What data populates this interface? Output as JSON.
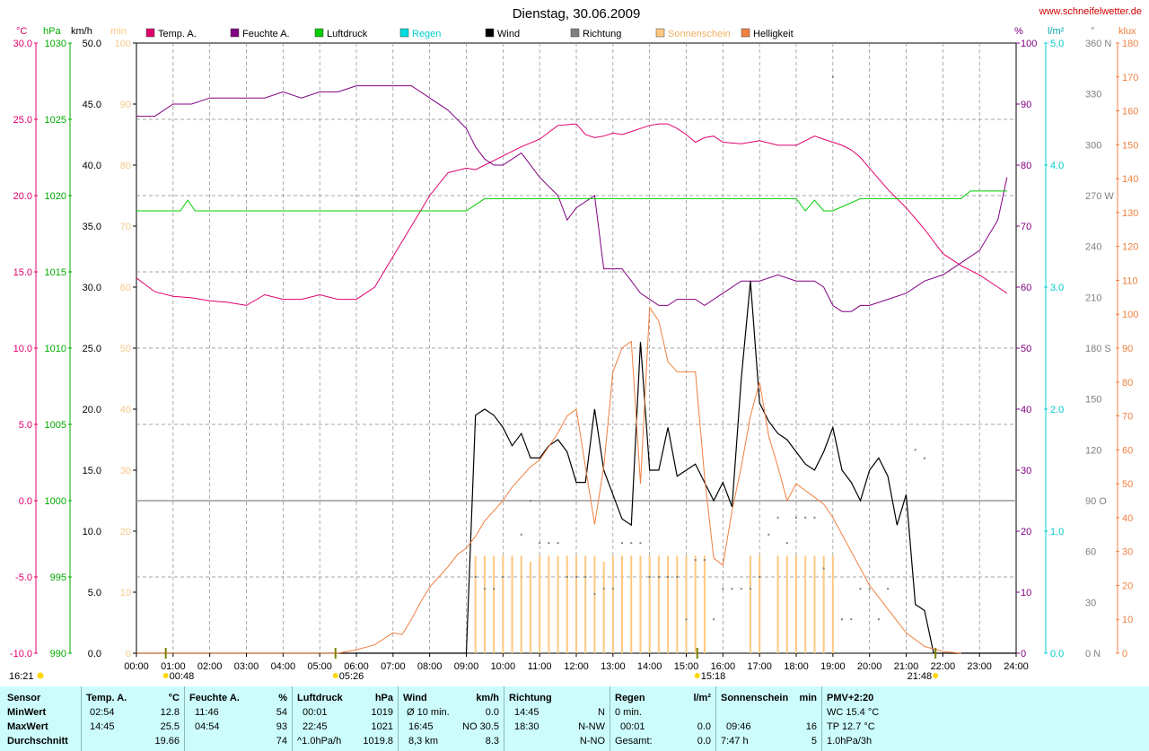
{
  "title": "Dienstag, 30.06.2009",
  "site": "www.schneifelwetter.de",
  "colors": {
    "temp": "#e0006c",
    "humidity": "#800080",
    "pressure": "#00cc00",
    "rain": "#00dddd",
    "wind": "#000000",
    "direction": "#808080",
    "sunshine": "#ffc880",
    "brightness": "#f08040"
  },
  "legend": [
    {
      "label": "Temp. A.",
      "color": "#e0006c"
    },
    {
      "label": "Feuchte A.",
      "color": "#800080"
    },
    {
      "label": "Luftdruck",
      "color": "#00cc00"
    },
    {
      "label": "Regen",
      "color": "#00dddd"
    },
    {
      "label": "Wind",
      "color": "#000000"
    },
    {
      "label": "Richtung",
      "color": "#808080"
    },
    {
      "label": "Sonnenschein",
      "color": "#ffc880"
    },
    {
      "label": "Helligkeit",
      "color": "#f08040"
    }
  ],
  "chart_data": {
    "type": "line",
    "x_range": [
      0,
      24
    ],
    "grid": true,
    "axes": {
      "temp": {
        "unit": "°C",
        "range": [
          -10,
          30
        ],
        "ticks": [
          "30.0",
          "25.0",
          "20.0",
          "15.0",
          "10.0",
          "5.0",
          "0.0",
          "-5.0",
          "-10.0"
        ]
      },
      "pressure": {
        "unit": "hPa",
        "range": [
          990,
          1030
        ],
        "ticks": [
          "1030",
          "1025",
          "1020",
          "1015",
          "1010",
          "1005",
          "1000",
          "995",
          "990"
        ]
      },
      "wind": {
        "unit": "km/h",
        "range": [
          0,
          50
        ],
        "ticks": [
          "50.0",
          "45.0",
          "40.0",
          "35.0",
          "30.0",
          "25.0",
          "20.0",
          "15.0",
          "10.0",
          "5.0",
          "0.0"
        ]
      },
      "minutes": {
        "unit": "min",
        "range": [
          0,
          100
        ],
        "ticks": [
          "100",
          "90",
          "80",
          "70",
          "60",
          "50",
          "40",
          "30",
          "20",
          "10",
          "0"
        ]
      },
      "humidity": {
        "unit": "%",
        "range": [
          0,
          100
        ],
        "ticks": [
          "100",
          "90",
          "80",
          "70",
          "60",
          "50",
          "40",
          "30",
          "20",
          "10",
          "0"
        ]
      },
      "rain": {
        "unit": "l/m²",
        "range": [
          0,
          5
        ],
        "ticks": [
          "5.0",
          "4.0",
          "3.0",
          "2.0",
          "1.0",
          "0.0"
        ]
      },
      "direction": {
        "unit": "°",
        "range": [
          0,
          360
        ],
        "ticks": [
          "360 N",
          "330",
          "300",
          "270 W",
          "240",
          "210",
          "180 S",
          "150",
          "120",
          "90 O",
          "60",
          "30",
          "0 N"
        ]
      },
      "brightness": {
        "unit": "klux",
        "range": [
          0,
          180
        ],
        "ticks": [
          "180",
          "170",
          "160",
          "150",
          "140",
          "130",
          "120",
          "110",
          "100",
          "90",
          "80",
          "70",
          "60",
          "50",
          "40",
          "30",
          "20",
          "10",
          "0"
        ]
      }
    },
    "x_ticks": [
      "00:00",
      "01:00",
      "02:00",
      "03:00",
      "04:00",
      "05:00",
      "06:00",
      "07:00",
      "08:00",
      "09:00",
      "10:00",
      "11:00",
      "12:00",
      "13:00",
      "14:00",
      "15:00",
      "16:00",
      "17:00",
      "18:00",
      "19:00",
      "20:00",
      "21:00",
      "22:00",
      "23:00",
      "24:00"
    ],
    "reference_line_temp": 0,
    "series": [
      {
        "name": "Temp. A.",
        "axis": "temp",
        "color": "#e0006c",
        "x": [
          0,
          0.5,
          1,
          1.5,
          2,
          2.5,
          3,
          3.5,
          4,
          4.5,
          5,
          5.5,
          6,
          6.5,
          7,
          7.5,
          8,
          8.5,
          9,
          9.25,
          9.5,
          9.75,
          10,
          10.5,
          11,
          11.5,
          12,
          12.25,
          12.5,
          12.75,
          13,
          13.25,
          13.5,
          13.75,
          14,
          14.25,
          14.5,
          14.75,
          15,
          15.25,
          15.5,
          15.75,
          16,
          16.5,
          17,
          17.5,
          18,
          18.25,
          18.5,
          18.75,
          19,
          19.25,
          19.5,
          19.75,
          20,
          20.25,
          20.5,
          20.75,
          21,
          21.25,
          21.5,
          21.75,
          22,
          22.5,
          23,
          23.5,
          23.75
        ],
        "y": [
          14.6,
          13.7,
          13.4,
          13.3,
          13.1,
          13.0,
          12.8,
          13.5,
          13.2,
          13.2,
          13.5,
          13.2,
          13.2,
          14.0,
          16.0,
          18.0,
          20.0,
          21.5,
          21.8,
          21.7,
          22.0,
          22.3,
          22.6,
          23.2,
          23.7,
          24.6,
          24.7,
          24.0,
          23.8,
          23.9,
          24.1,
          24.0,
          24.2,
          24.4,
          24.6,
          24.7,
          24.7,
          24.4,
          24.0,
          23.5,
          23.8,
          23.9,
          23.5,
          23.4,
          23.6,
          23.3,
          23.3,
          23.6,
          23.9,
          23.7,
          23.5,
          23.3,
          23.0,
          22.5,
          21.8,
          21.1,
          20.4,
          19.8,
          19.2,
          18.5,
          17.8,
          17.0,
          16.2,
          15.4,
          14.8,
          14.0,
          13.6
        ]
      },
      {
        "name": "Feuchte A.",
        "axis": "humidity",
        "color": "#800080",
        "x": [
          0,
          0.5,
          1,
          1.5,
          2,
          2.5,
          3,
          3.5,
          4,
          4.5,
          5,
          5.5,
          6,
          6.5,
          7,
          7.5,
          8,
          8.5,
          9,
          9.25,
          9.5,
          9.75,
          10,
          10.5,
          11,
          11.5,
          11.75,
          12,
          12.5,
          12.75,
          13,
          13.25,
          13.5,
          13.75,
          14,
          14.25,
          14.5,
          14.75,
          15,
          15.25,
          15.5,
          16,
          16.5,
          17,
          17.5,
          18,
          18.5,
          18.75,
          19,
          19.25,
          19.5,
          19.75,
          20,
          20.5,
          21,
          21.5,
          22,
          22.5,
          23,
          23.5,
          23.75
        ],
        "y": [
          88,
          88,
          90,
          90,
          91,
          91,
          91,
          91,
          92,
          91,
          92,
          92,
          93,
          93,
          93,
          93,
          91,
          89,
          86,
          83,
          81,
          80,
          80,
          82,
          78,
          75,
          71,
          73,
          75,
          63,
          63,
          63,
          61,
          59,
          58,
          57,
          57,
          58,
          58,
          58,
          57,
          59,
          61,
          61,
          62,
          61,
          61,
          60,
          57,
          56,
          56,
          57,
          57,
          58,
          59,
          61,
          62,
          64,
          66,
          71,
          78
        ]
      },
      {
        "name": "Luftdruck",
        "axis": "pressure",
        "color": "#00cc00",
        "x": [
          0,
          1.2,
          1.4,
          1.6,
          9.0,
          9.25,
          9.5,
          18.0,
          18.25,
          18.5,
          18.75,
          19.0,
          19.75,
          20.0,
          22.5,
          22.75,
          23.75
        ],
        "y": [
          1019,
          1019,
          1019.7,
          1019,
          1019,
          1019.4,
          1019.8,
          1019.8,
          1019,
          1019.7,
          1019,
          1019,
          1019.8,
          1019.8,
          1019.8,
          1020.3,
          1020.3
        ]
      },
      {
        "name": "Wind",
        "axis": "wind",
        "color": "#000000",
        "x": [
          0,
          9.0,
          9.25,
          9.5,
          9.75,
          10,
          10.25,
          10.5,
          10.75,
          11,
          11.25,
          11.5,
          11.75,
          12,
          12.25,
          12.5,
          12.75,
          13,
          13.25,
          13.5,
          13.75,
          14,
          14.25,
          14.5,
          14.75,
          15,
          15.25,
          15.5,
          15.75,
          16,
          16.25,
          16.5,
          16.75,
          17,
          17.25,
          17.5,
          17.75,
          18,
          18.25,
          18.5,
          18.75,
          19,
          19.25,
          19.5,
          19.75,
          20,
          20.25,
          20.5,
          20.75,
          21,
          21.25,
          21.5,
          21.75,
          22,
          24
        ],
        "y": [
          0,
          0,
          19.5,
          20.0,
          19.5,
          18.5,
          17.0,
          18.0,
          16.0,
          16.0,
          17.0,
          17.5,
          16.5,
          14.0,
          14.0,
          20.0,
          15.0,
          13.0,
          11.0,
          10.5,
          25.5,
          15.0,
          15.0,
          18.5,
          14.5,
          15.0,
          15.5,
          14.0,
          12.5,
          14.0,
          12.0,
          22.5,
          30.5,
          20.5,
          19.0,
          18.0,
          17.5,
          16.5,
          15.5,
          15.0,
          16.5,
          18.5,
          15.0,
          14.0,
          12.5,
          15.0,
          16.0,
          14.5,
          10.5,
          13.0,
          4.0,
          3.5,
          0.0,
          0,
          0
        ]
      },
      {
        "name": "Helligkeit",
        "axis": "brightness",
        "color": "#f08040",
        "x": [
          0,
          5.5,
          6.0,
          6.5,
          7.0,
          7.25,
          7.5,
          7.75,
          8.0,
          8.25,
          8.5,
          8.75,
          9.0,
          9.25,
          9.5,
          9.75,
          10.0,
          10.25,
          10.5,
          10.75,
          11.0,
          11.25,
          11.5,
          11.75,
          12.0,
          12.25,
          12.5,
          12.75,
          13.0,
          13.25,
          13.5,
          13.75,
          14.0,
          14.25,
          14.5,
          14.75,
          15.0,
          15.25,
          15.5,
          15.75,
          16.0,
          16.25,
          16.5,
          16.75,
          17.0,
          17.25,
          17.5,
          17.75,
          18.0,
          18.25,
          18.5,
          18.75,
          19.0,
          19.5,
          20.0,
          20.5,
          21.0,
          21.5,
          22.0,
          22.5
        ],
        "y": [
          0,
          0,
          1.0,
          2.5,
          6.0,
          5.5,
          10.0,
          15.0,
          19.5,
          22.5,
          25.5,
          29.0,
          31.0,
          34.5,
          39.0,
          42.0,
          45.0,
          49.0,
          52.0,
          55.0,
          57.0,
          61.0,
          65.0,
          70.0,
          72.0,
          55.0,
          38.0,
          55.0,
          83.0,
          90.0,
          92.0,
          50.0,
          102.0,
          98.0,
          86.0,
          83.0,
          83.0,
          83.0,
          52.0,
          28.0,
          26.0,
          42.0,
          55.0,
          70.0,
          80.0,
          64.0,
          55.0,
          45.0,
          50.0,
          48.0,
          46.0,
          44.0,
          40.0,
          30.0,
          20.0,
          13.0,
          6.0,
          2.0,
          0.5,
          0
        ]
      },
      {
        "name": "Sonnenschein",
        "axis": "minutes",
        "color": "#ffc880",
        "x": [
          9.25,
          9.5,
          9.75,
          10.0,
          10.25,
          10.5,
          10.75,
          11.0,
          11.25,
          11.5,
          11.75,
          12.0,
          12.25,
          12.5,
          12.75,
          13.0,
          13.25,
          13.5,
          13.75,
          14.0,
          14.25,
          14.5,
          14.75,
          15.0,
          15.25,
          15.5,
          16.75,
          17.0,
          17.5,
          17.75,
          18.0,
          18.25,
          18.5,
          18.75,
          19.0
        ],
        "y": [
          16,
          16,
          16,
          16,
          16,
          16,
          15,
          16,
          16,
          16,
          16,
          16,
          16,
          16,
          15,
          16,
          16,
          16,
          16,
          16,
          16,
          16,
          16,
          16,
          16,
          16,
          16,
          16,
          16,
          16,
          16,
          16,
          16,
          16,
          16
        ]
      },
      {
        "name": "Richtung",
        "axis": "direction",
        "color": "#808080",
        "x": [
          9.25,
          9.5,
          9.75,
          10.0,
          10.5,
          10.75,
          11.0,
          11.25,
          11.5,
          11.75,
          12.0,
          12.25,
          12.5,
          12.75,
          13.0,
          13.25,
          13.5,
          13.75,
          14.0,
          14.25,
          14.5,
          14.75,
          15.0,
          15.25,
          15.5,
          15.75,
          16.0,
          16.25,
          16.5,
          16.75,
          17.0,
          17.25,
          17.5,
          17.75,
          18.0,
          18.25,
          18.5,
          18.75,
          19.0,
          19.25,
          19.5,
          19.75,
          20.0,
          20.25,
          20.5,
          21.0,
          21.25,
          21.5
        ],
        "y": [
          45,
          38,
          38,
          45,
          70,
          90,
          65,
          65,
          65,
          45,
          45,
          45,
          35,
          38,
          38,
          65,
          65,
          65,
          45,
          45,
          45,
          45,
          20,
          55,
          55,
          20,
          38,
          38,
          38,
          38,
          45,
          70,
          80,
          65,
          80,
          80,
          80,
          50,
          340,
          20,
          20,
          38,
          38,
          20,
          38,
          85,
          120,
          115
        ]
      }
    ],
    "markers": [
      {
        "label": "00:48",
        "x": 0.8
      },
      {
        "label": "05:26",
        "x": 5.43
      },
      {
        "label": "15:18",
        "x": 15.3
      },
      {
        "label": "21:48",
        "x": 21.8
      }
    ],
    "bottom_time": "16:21"
  },
  "stats": {
    "sensor": {
      "title": "Sensor",
      "rows": [
        "MinWert",
        "MaxWert",
        "Durchschnitt"
      ]
    },
    "temp": {
      "title": "Temp. A.",
      "unit": "°C",
      "min_time": "02:54",
      "min": "12.8",
      "max_time": "14:45",
      "max": "25.5",
      "avg": "19.66"
    },
    "humidity": {
      "title": "Feuchte A.",
      "unit": "%",
      "min_time": "11:46",
      "min": "54",
      "max_time": "04:54",
      "max": "93",
      "avg": "74"
    },
    "pressure": {
      "title": "Luftdruck",
      "unit": "hPa",
      "min_time": "00:01",
      "min": "1019",
      "max_time": "22:45",
      "max": "1021",
      "trend": "^1.0hPa/h",
      "avg": "1019.8"
    },
    "wind": {
      "title": "Wind",
      "unit": "km/h",
      "min_label": "Ø 10 min.",
      "min": "0.0",
      "max_time": "16:45",
      "max": "NO 30.5",
      "dist": "8,3 km",
      "avg": "8.3"
    },
    "direction": {
      "title": "Richtung",
      "min_time": "14:45",
      "min": "N",
      "max_time": "18:30",
      "max": "N-NW",
      "avg": "N-NO"
    },
    "rain": {
      "title": "Regen",
      "unit": "l/m²",
      "row1": "0 min.",
      "row2_time": "00:01",
      "row2": "0.0",
      "row3_label": "Gesamt:",
      "row3": "0.0"
    },
    "sunshine": {
      "title": "Sonnenschein",
      "unit": "min",
      "row2_time": "09:46",
      "row2": "16",
      "row3_time": "7:47 h",
      "row3": "5"
    },
    "pmv": {
      "title": "PMV+2:20",
      "wc": "WC 15.4 °C",
      "tp": "TP 12.7 °C",
      "trend": "1.0hPa/3h"
    }
  }
}
